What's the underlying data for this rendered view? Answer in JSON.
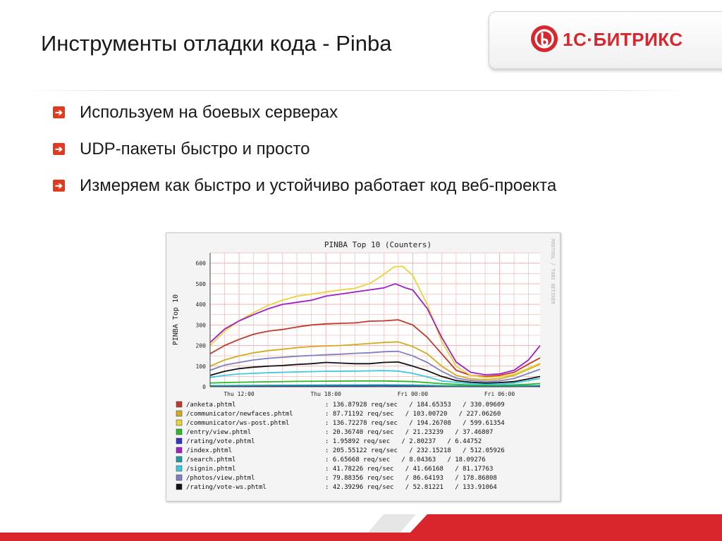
{
  "slide": {
    "title": "Инструменты отладки кода - Pinba",
    "logo_text": "1С·БИТРИКС",
    "bullets": [
      "Используем на боевых серверах",
      "UDP-пакеты быстро и просто",
      "Измеряем как быстро и устойчиво работает код веб-проекта"
    ]
  },
  "colors": {
    "accent": "#d9262d",
    "bullet": "#e23a1f"
  },
  "chart_data": {
    "type": "line",
    "title": "PINBA Top 10 (Counters)",
    "ylabel": "PINBA Top 10",
    "watermark": "RRDTOOL / TOBI OETIKER",
    "ylim": [
      0,
      650
    ],
    "yticks": [
      0,
      100,
      200,
      300,
      400,
      500,
      600
    ],
    "xlim": [
      10.0,
      32.8
    ],
    "x_ticks": [
      {
        "x": 12,
        "label": "Thu 12:00"
      },
      {
        "x": 18,
        "label": "Thu 18:00"
      },
      {
        "x": 24,
        "label": "Fri 00:00"
      },
      {
        "x": 30,
        "label": "Fri 06:00"
      }
    ],
    "series": [
      {
        "name": "/anketa.phtml",
        "color": "#c0392b",
        "stats": ": 136.87928 req/sec   / 184.65353   / 330.09609",
        "points": [
          [
            10,
            160
          ],
          [
            11,
            200
          ],
          [
            12,
            230
          ],
          [
            13,
            255
          ],
          [
            14,
            270
          ],
          [
            15,
            278
          ],
          [
            16,
            290
          ],
          [
            17,
            300
          ],
          [
            18,
            305
          ],
          [
            19,
            308
          ],
          [
            20,
            310
          ],
          [
            21,
            318
          ],
          [
            22,
            320
          ],
          [
            23,
            325
          ],
          [
            24,
            300
          ],
          [
            25,
            240
          ],
          [
            26,
            160
          ],
          [
            27,
            80
          ],
          [
            28,
            55
          ],
          [
            29,
            50
          ],
          [
            30,
            55
          ],
          [
            31,
            70
          ],
          [
            32,
            110
          ],
          [
            32.8,
            140
          ]
        ]
      },
      {
        "name": "/communicator/newfaces.phtml",
        "color": "#d4aa1e",
        "stats": ": 87.71192 req/sec   / 103.00720   / 227.06260",
        "points": [
          [
            10,
            100
          ],
          [
            11,
            130
          ],
          [
            12,
            150
          ],
          [
            13,
            165
          ],
          [
            14,
            175
          ],
          [
            15,
            182
          ],
          [
            16,
            190
          ],
          [
            17,
            195
          ],
          [
            18,
            198
          ],
          [
            19,
            200
          ],
          [
            20,
            205
          ],
          [
            21,
            210
          ],
          [
            22,
            215
          ],
          [
            23,
            218
          ],
          [
            24,
            195
          ],
          [
            25,
            160
          ],
          [
            26,
            100
          ],
          [
            27,
            55
          ],
          [
            28,
            38
          ],
          [
            29,
            35
          ],
          [
            30,
            38
          ],
          [
            31,
            55
          ],
          [
            32,
            85
          ],
          [
            32.8,
            110
          ]
        ]
      },
      {
        "name": "/communicator/ws-post.phtml",
        "color": "#e8d43a",
        "stats": ": 136.72278 req/sec   / 194.26708   / 599.61354",
        "points": [
          [
            10,
            200
          ],
          [
            11,
            270
          ],
          [
            12,
            320
          ],
          [
            13,
            360
          ],
          [
            14,
            395
          ],
          [
            15,
            420
          ],
          [
            16,
            440
          ],
          [
            17,
            450
          ],
          [
            18,
            460
          ],
          [
            19,
            470
          ],
          [
            20,
            478
          ],
          [
            21,
            500
          ],
          [
            22,
            545
          ],
          [
            22.7,
            582
          ],
          [
            23.3,
            585
          ],
          [
            24,
            540
          ],
          [
            25,
            400
          ],
          [
            26,
            220
          ],
          [
            27,
            100
          ],
          [
            28,
            55
          ],
          [
            29,
            45
          ],
          [
            30,
            48
          ],
          [
            31,
            60
          ],
          [
            32,
            90
          ],
          [
            32.8,
            115
          ]
        ]
      },
      {
        "name": "/entry/view.phtml",
        "color": "#2db82d",
        "stats": ": 20.36740 req/sec   / 21.23239   / 37.46807",
        "points": [
          [
            10,
            18
          ],
          [
            12,
            22
          ],
          [
            14,
            24
          ],
          [
            16,
            26
          ],
          [
            18,
            27
          ],
          [
            20,
            28
          ],
          [
            22,
            28
          ],
          [
            24,
            25
          ],
          [
            26,
            15
          ],
          [
            28,
            8
          ],
          [
            30,
            6
          ],
          [
            32,
            12
          ],
          [
            32.8,
            16
          ]
        ]
      },
      {
        "name": "/rating/vote.phtml",
        "color": "#3333cc",
        "stats": ": 1.95892 req/sec   / 2.80237   / 6.44752",
        "points": [
          [
            10,
            2
          ],
          [
            14,
            3
          ],
          [
            18,
            4
          ],
          [
            22,
            5
          ],
          [
            24,
            4
          ],
          [
            26,
            2
          ],
          [
            28,
            1
          ],
          [
            30,
            1
          ],
          [
            32.8,
            2
          ]
        ]
      },
      {
        "name": "/index.phtml",
        "color": "#a020c8",
        "stats": ": 205.55122 req/sec   / 232.15218   / 512.05926",
        "points": [
          [
            10,
            215
          ],
          [
            11,
            280
          ],
          [
            12,
            320
          ],
          [
            13,
            350
          ],
          [
            14,
            378
          ],
          [
            15,
            400
          ],
          [
            16,
            410
          ],
          [
            17,
            420
          ],
          [
            18,
            440
          ],
          [
            19,
            450
          ],
          [
            20,
            460
          ],
          [
            21,
            470
          ],
          [
            22,
            480
          ],
          [
            22.8,
            500
          ],
          [
            23.5,
            480
          ],
          [
            24,
            470
          ],
          [
            25,
            380
          ],
          [
            26,
            240
          ],
          [
            27,
            120
          ],
          [
            28,
            70
          ],
          [
            29,
            58
          ],
          [
            30,
            62
          ],
          [
            31,
            80
          ],
          [
            32,
            130
          ],
          [
            32.8,
            200
          ]
        ]
      },
      {
        "name": "/search.phtml",
        "color": "#1aa0a0",
        "stats": ": 6.65668 req/sec   / 8.04363   / 18.09276",
        "points": [
          [
            10,
            5
          ],
          [
            14,
            7
          ],
          [
            18,
            8
          ],
          [
            22,
            9
          ],
          [
            24,
            8
          ],
          [
            26,
            5
          ],
          [
            28,
            3
          ],
          [
            30,
            3
          ],
          [
            32.8,
            6
          ]
        ]
      },
      {
        "name": "/signin.phtml",
        "color": "#40c8e0",
        "stats": ": 41.78226 req/sec   / 41.66168   / 81.17763",
        "points": [
          [
            10,
            45
          ],
          [
            11,
            55
          ],
          [
            12,
            62
          ],
          [
            14,
            68
          ],
          [
            16,
            72
          ],
          [
            18,
            75
          ],
          [
            20,
            76
          ],
          [
            22,
            78
          ],
          [
            23,
            76
          ],
          [
            24,
            65
          ],
          [
            25,
            48
          ],
          [
            26,
            28
          ],
          [
            28,
            15
          ],
          [
            30,
            12
          ],
          [
            31,
            18
          ],
          [
            32,
            30
          ],
          [
            32.8,
            40
          ]
        ]
      },
      {
        "name": "/photos/view.phtml",
        "color": "#8080c0",
        "stats": ": 79.88356 req/sec   / 86.64193   / 178.86808",
        "points": [
          [
            10,
            80
          ],
          [
            11,
            105
          ],
          [
            12,
            118
          ],
          [
            13,
            130
          ],
          [
            14,
            138
          ],
          [
            15,
            143
          ],
          [
            16,
            148
          ],
          [
            17,
            152
          ],
          [
            18,
            155
          ],
          [
            19,
            158
          ],
          [
            20,
            162
          ],
          [
            21,
            165
          ],
          [
            22,
            170
          ],
          [
            23,
            172
          ],
          [
            24,
            150
          ],
          [
            25,
            118
          ],
          [
            26,
            75
          ],
          [
            27,
            42
          ],
          [
            28,
            30
          ],
          [
            29,
            26
          ],
          [
            30,
            28
          ],
          [
            31,
            40
          ],
          [
            32,
            65
          ],
          [
            32.8,
            85
          ]
        ]
      },
      {
        "name": "/rating/vote-ws.phtml",
        "color": "#111111",
        "stats": ": 42.39296 req/sec   / 52.81221   / 133.91064",
        "points": [
          [
            10,
            55
          ],
          [
            11,
            75
          ],
          [
            12,
            88
          ],
          [
            13,
            95
          ],
          [
            14,
            100
          ],
          [
            15,
            103
          ],
          [
            16,
            108
          ],
          [
            17,
            112
          ],
          [
            18,
            118
          ],
          [
            19,
            115
          ],
          [
            20,
            112
          ],
          [
            21,
            112
          ],
          [
            22,
            118
          ],
          [
            23,
            120
          ],
          [
            24,
            100
          ],
          [
            25,
            78
          ],
          [
            26,
            50
          ],
          [
            27,
            30
          ],
          [
            28,
            22
          ],
          [
            29,
            18
          ],
          [
            30,
            20
          ],
          [
            31,
            25
          ],
          [
            32,
            38
          ],
          [
            32.8,
            50
          ]
        ]
      }
    ]
  }
}
